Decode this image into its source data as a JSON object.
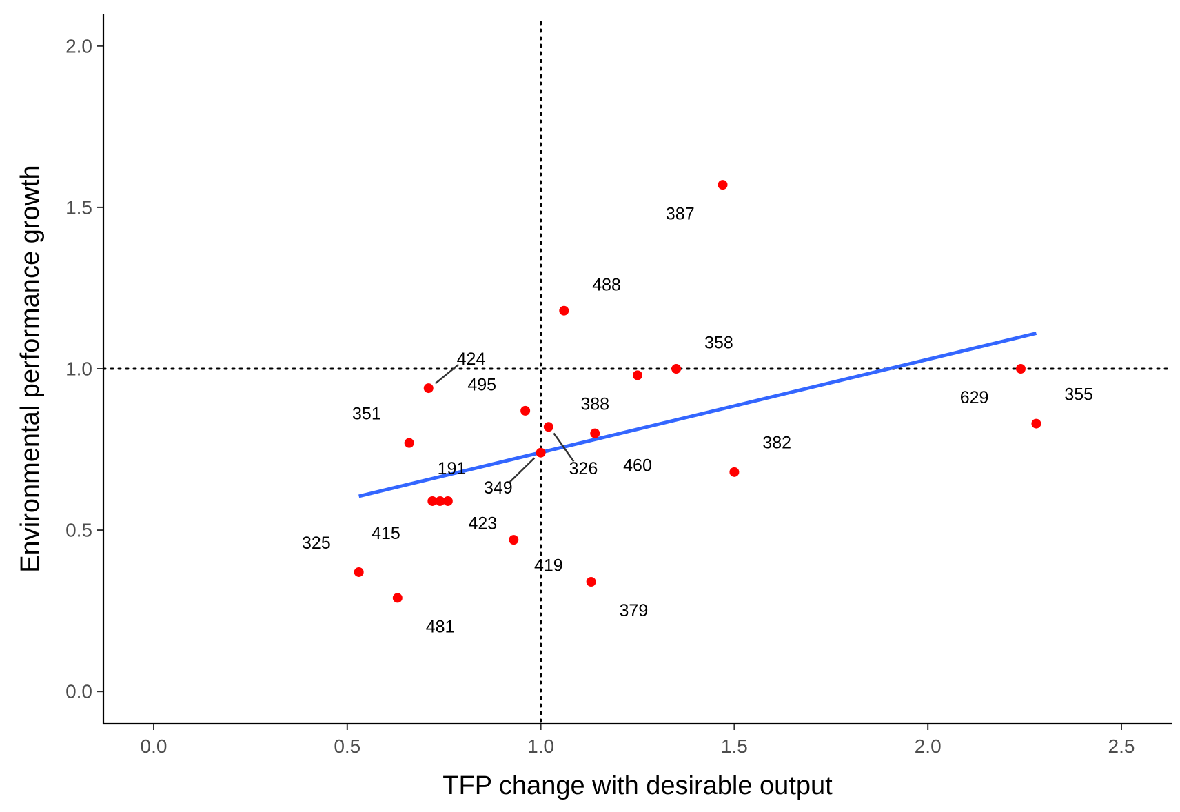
{
  "chart_data": {
    "type": "scatter",
    "xlabel": "TFP change with desirable output",
    "ylabel": "Environmental performance growth",
    "xlim": [
      -0.13,
      2.63
    ],
    "ylim": [
      -0.1,
      2.1
    ],
    "xticks": [
      0.0,
      0.5,
      1.0,
      1.5,
      2.0,
      2.5
    ],
    "xtick_labels": [
      "0.0",
      "0.5",
      "1.0",
      "1.5",
      "2.0",
      "2.5"
    ],
    "yticks": [
      0.0,
      0.5,
      1.0,
      1.5,
      2.0
    ],
    "ytick_labels": [
      "0.0",
      "0.5",
      "1.0",
      "1.5",
      "2.0"
    ],
    "grid": false,
    "reference_lines": {
      "x": 1.0,
      "y": 1.0,
      "style": "dotted"
    },
    "point_color": "#FF0000",
    "trend_color": "#3366FF",
    "trend_line": {
      "x": [
        0.53,
        2.28
      ],
      "y": [
        0.605,
        1.11
      ]
    },
    "points": [
      {
        "label": "387",
        "x": 1.47,
        "y": 1.57,
        "label_x": 1.36,
        "label_y": 1.48
      },
      {
        "label": "488",
        "x": 1.06,
        "y": 1.18,
        "label_x": 1.17,
        "label_y": 1.26
      },
      {
        "label": "358",
        "x": 1.35,
        "y": 1.0,
        "label_x": 1.46,
        "label_y": 1.08
      },
      {
        "label": "424",
        "x": 0.71,
        "y": 0.94,
        "label_x": 0.82,
        "label_y": 1.03,
        "leader": true
      },
      {
        "label": "495",
        "x": 0.96,
        "y": 0.87,
        "label_x": 0.848,
        "label_y": 0.95
      },
      {
        "label": "351",
        "x": 0.66,
        "y": 0.77,
        "label_x": 0.55,
        "label_y": 0.86
      },
      {
        "label": "388",
        "x": 1.25,
        "y": 0.98,
        "label_x": 1.14,
        "label_y": 0.89
      },
      {
        "label": "326",
        "x": 1.02,
        "y": 0.82,
        "label_x": 1.11,
        "label_y": 0.69,
        "leader": true
      },
      {
        "label": "460",
        "x": 1.14,
        "y": 0.8,
        "label_x": 1.25,
        "label_y": 0.7
      },
      {
        "label": "349",
        "x": 1.0,
        "y": 0.74,
        "label_x": 0.89,
        "label_y": 0.63,
        "leader": true
      },
      {
        "label": "191",
        "x": 0.76,
        "y": 0.59,
        "label_x": 0.77,
        "label_y": 0.69
      },
      {
        "label": "415",
        "x": 0.72,
        "y": 0.59,
        "label_x": 0.6,
        "label_y": 0.49
      },
      {
        "label": "423",
        "x": 0.74,
        "y": 0.59,
        "label_x": 0.85,
        "label_y": 0.52
      },
      {
        "label": "325",
        "x": 0.53,
        "y": 0.37,
        "label_x": 0.42,
        "label_y": 0.46
      },
      {
        "label": "481",
        "x": 0.63,
        "y": 0.29,
        "label_x": 0.74,
        "label_y": 0.2
      },
      {
        "label": "419",
        "x": 0.93,
        "y": 0.47,
        "label_x": 1.02,
        "label_y": 0.39
      },
      {
        "label": "379",
        "x": 1.13,
        "y": 0.34,
        "label_x": 1.24,
        "label_y": 0.25
      },
      {
        "label": "382",
        "x": 1.5,
        "y": 0.68,
        "label_x": 1.61,
        "label_y": 0.77
      },
      {
        "label": "629",
        "x": 2.24,
        "y": 1.0,
        "label_x": 2.12,
        "label_y": 0.91
      },
      {
        "label": "355",
        "x": 2.28,
        "y": 0.83,
        "label_x": 2.39,
        "label_y": 0.92
      }
    ]
  }
}
